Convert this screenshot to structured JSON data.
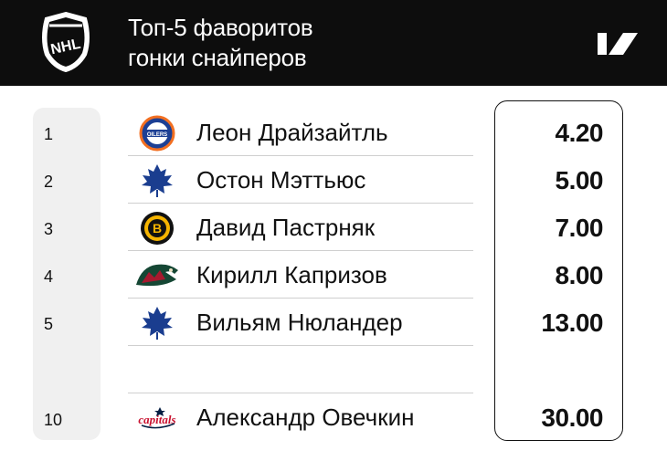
{
  "header": {
    "title_line1": "Топ-5 фаворитов",
    "title_line2": "гонки снайперов"
  },
  "rows": [
    {
      "rank": "1",
      "player": "Леон Драйзайтль",
      "team_icon": "edmonton-oilers-logo-icon",
      "odds": "4.20"
    },
    {
      "rank": "2",
      "player": "Остон Мэттьюс",
      "team_icon": "toronto-maple-leafs-logo-icon",
      "odds": "5.00"
    },
    {
      "rank": "3",
      "player": "Давид Пастрняк",
      "team_icon": "boston-bruins-logo-icon",
      "odds": "7.00"
    },
    {
      "rank": "4",
      "player": "Кирилл Капризов",
      "team_icon": "minnesota-wild-logo-icon",
      "odds": "8.00"
    },
    {
      "rank": "5",
      "player": "Вильям Нюландер",
      "team_icon": "toronto-maple-leafs-logo-icon",
      "odds": "13.00"
    },
    {
      "rank": "10",
      "player": "Александр Овечкин",
      "team_icon": "washington-capitals-logo-icon",
      "odds": "30.00"
    }
  ],
  "logos": {
    "league": "nhl-logo-icon",
    "brand": "brand-logo-icon"
  },
  "colors": {
    "header_bg": "#0d0d0d",
    "rank_column_bg": "#f0f0f0",
    "oilers_blue": "#1c3f94",
    "oilers_orange": "#f26f21",
    "leafs_blue": "#1a3d8f",
    "bruins_gold": "#f5b400",
    "wild_green": "#154734",
    "wild_red": "#a6192e",
    "capitals_red": "#c8102e",
    "capitals_navy": "#041e42"
  }
}
